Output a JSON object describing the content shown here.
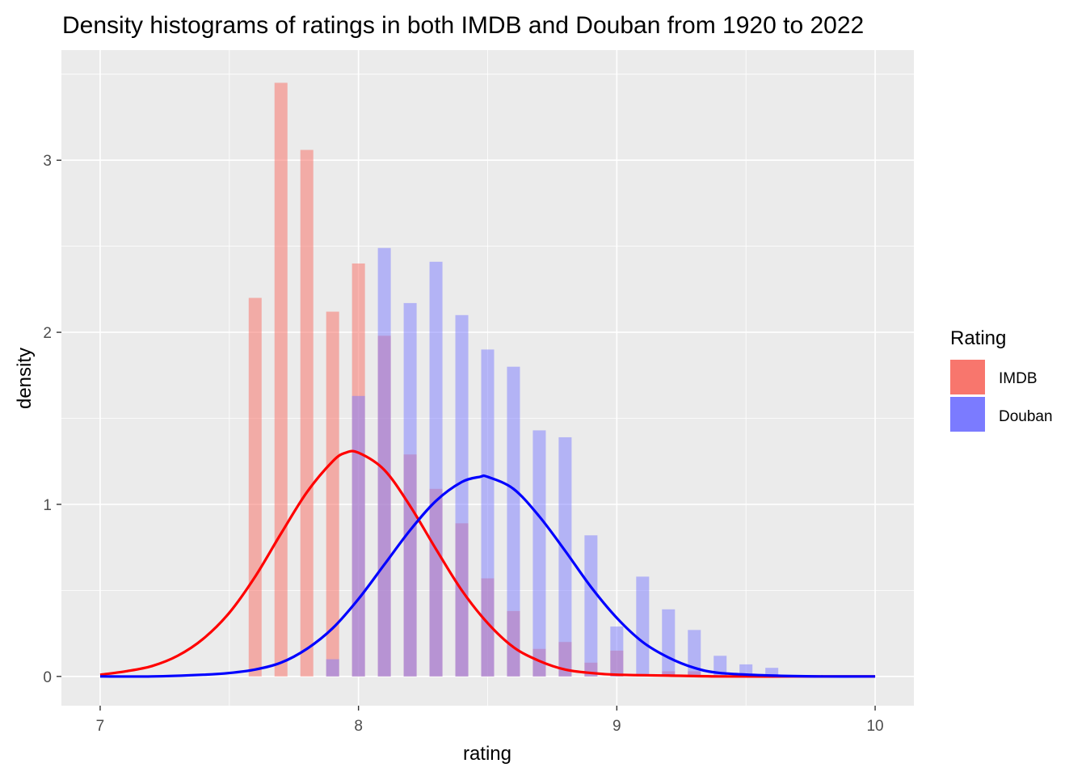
{
  "chart_data": {
    "type": "histogram",
    "title": "Density histograms of ratings in both IMDB and Douban from 1920 to 2022",
    "xlabel": "rating",
    "ylabel": "density",
    "xlim": [
      6.85,
      10.15
    ],
    "ylim": [
      -0.17,
      3.64
    ],
    "x_ticks": [
      "7",
      "8",
      "9",
      "10"
    ],
    "y_ticks": [
      "0",
      "1",
      "2",
      "3"
    ],
    "grid": true,
    "legend": {
      "title": "Rating",
      "position": "right",
      "entries": [
        {
          "label": "IMDB",
          "color": "#F8766D"
        },
        {
          "label": "Douban",
          "color": "#7B7BFF"
        }
      ]
    },
    "series": [
      {
        "name": "IMDB",
        "bar_color": "#F8766D",
        "bar_opacity": 0.55,
        "curve_color": "#FF0000",
        "bins": [
          {
            "x": 7.6,
            "y": 2.2
          },
          {
            "x": 7.7,
            "y": 3.45
          },
          {
            "x": 7.8,
            "y": 3.06
          },
          {
            "x": 7.9,
            "y": 2.12
          },
          {
            "x": 8.0,
            "y": 2.4
          },
          {
            "x": 8.1,
            "y": 1.98
          },
          {
            "x": 8.2,
            "y": 1.29
          },
          {
            "x": 8.3,
            "y": 1.09
          },
          {
            "x": 8.4,
            "y": 0.89
          },
          {
            "x": 8.5,
            "y": 0.57
          },
          {
            "x": 8.6,
            "y": 0.38
          },
          {
            "x": 8.7,
            "y": 0.16
          },
          {
            "x": 8.8,
            "y": 0.2
          },
          {
            "x": 8.9,
            "y": 0.08
          },
          {
            "x": 9.0,
            "y": 0.15
          },
          {
            "x": 9.2,
            "y": 0.03
          },
          {
            "x": 9.3,
            "y": 0.03
          }
        ],
        "density_curve": [
          [
            7.0,
            0.01
          ],
          [
            7.1,
            0.03
          ],
          [
            7.2,
            0.06
          ],
          [
            7.3,
            0.12
          ],
          [
            7.4,
            0.22
          ],
          [
            7.5,
            0.37
          ],
          [
            7.6,
            0.58
          ],
          [
            7.7,
            0.83
          ],
          [
            7.8,
            1.07
          ],
          [
            7.9,
            1.25
          ],
          [
            7.95,
            1.3
          ],
          [
            8.0,
            1.3
          ],
          [
            8.1,
            1.2
          ],
          [
            8.2,
            0.99
          ],
          [
            8.3,
            0.74
          ],
          [
            8.4,
            0.5
          ],
          [
            8.5,
            0.31
          ],
          [
            8.6,
            0.17
          ],
          [
            8.7,
            0.09
          ],
          [
            8.8,
            0.04
          ],
          [
            8.9,
            0.02
          ],
          [
            9.0,
            0.01
          ],
          [
            9.2,
            0.005
          ],
          [
            9.4,
            0.0
          ],
          [
            9.7,
            0.0
          ],
          [
            10.0,
            0.0
          ]
        ]
      },
      {
        "name": "Douban",
        "bar_color": "#7B7BFF",
        "bar_opacity": 0.5,
        "curve_color": "#0000FF",
        "bins": [
          {
            "x": 7.9,
            "y": 0.1
          },
          {
            "x": 8.0,
            "y": 1.63
          },
          {
            "x": 8.1,
            "y": 2.49
          },
          {
            "x": 8.2,
            "y": 2.17
          },
          {
            "x": 8.3,
            "y": 2.41
          },
          {
            "x": 8.4,
            "y": 2.1
          },
          {
            "x": 8.5,
            "y": 1.9
          },
          {
            "x": 8.6,
            "y": 1.8
          },
          {
            "x": 8.7,
            "y": 1.43
          },
          {
            "x": 8.8,
            "y": 1.39
          },
          {
            "x": 8.9,
            "y": 0.82
          },
          {
            "x": 9.0,
            "y": 0.29
          },
          {
            "x": 9.1,
            "y": 0.58
          },
          {
            "x": 9.2,
            "y": 0.39
          },
          {
            "x": 9.3,
            "y": 0.27
          },
          {
            "x": 9.4,
            "y": 0.12
          },
          {
            "x": 9.5,
            "y": 0.07
          },
          {
            "x": 9.6,
            "y": 0.05
          }
        ],
        "density_curve": [
          [
            7.0,
            0.0
          ],
          [
            7.2,
            0.0
          ],
          [
            7.4,
            0.01
          ],
          [
            7.5,
            0.02
          ],
          [
            7.6,
            0.04
          ],
          [
            7.7,
            0.08
          ],
          [
            7.8,
            0.16
          ],
          [
            7.9,
            0.28
          ],
          [
            8.0,
            0.45
          ],
          [
            8.1,
            0.65
          ],
          [
            8.2,
            0.85
          ],
          [
            8.3,
            1.02
          ],
          [
            8.4,
            1.13
          ],
          [
            8.47,
            1.16
          ],
          [
            8.5,
            1.16
          ],
          [
            8.6,
            1.09
          ],
          [
            8.7,
            0.93
          ],
          [
            8.8,
            0.73
          ],
          [
            8.9,
            0.52
          ],
          [
            9.0,
            0.34
          ],
          [
            9.1,
            0.2
          ],
          [
            9.2,
            0.11
          ],
          [
            9.3,
            0.05
          ],
          [
            9.4,
            0.02
          ],
          [
            9.6,
            0.005
          ],
          [
            9.8,
            0.0
          ],
          [
            10.0,
            0.0
          ]
        ]
      }
    ]
  }
}
